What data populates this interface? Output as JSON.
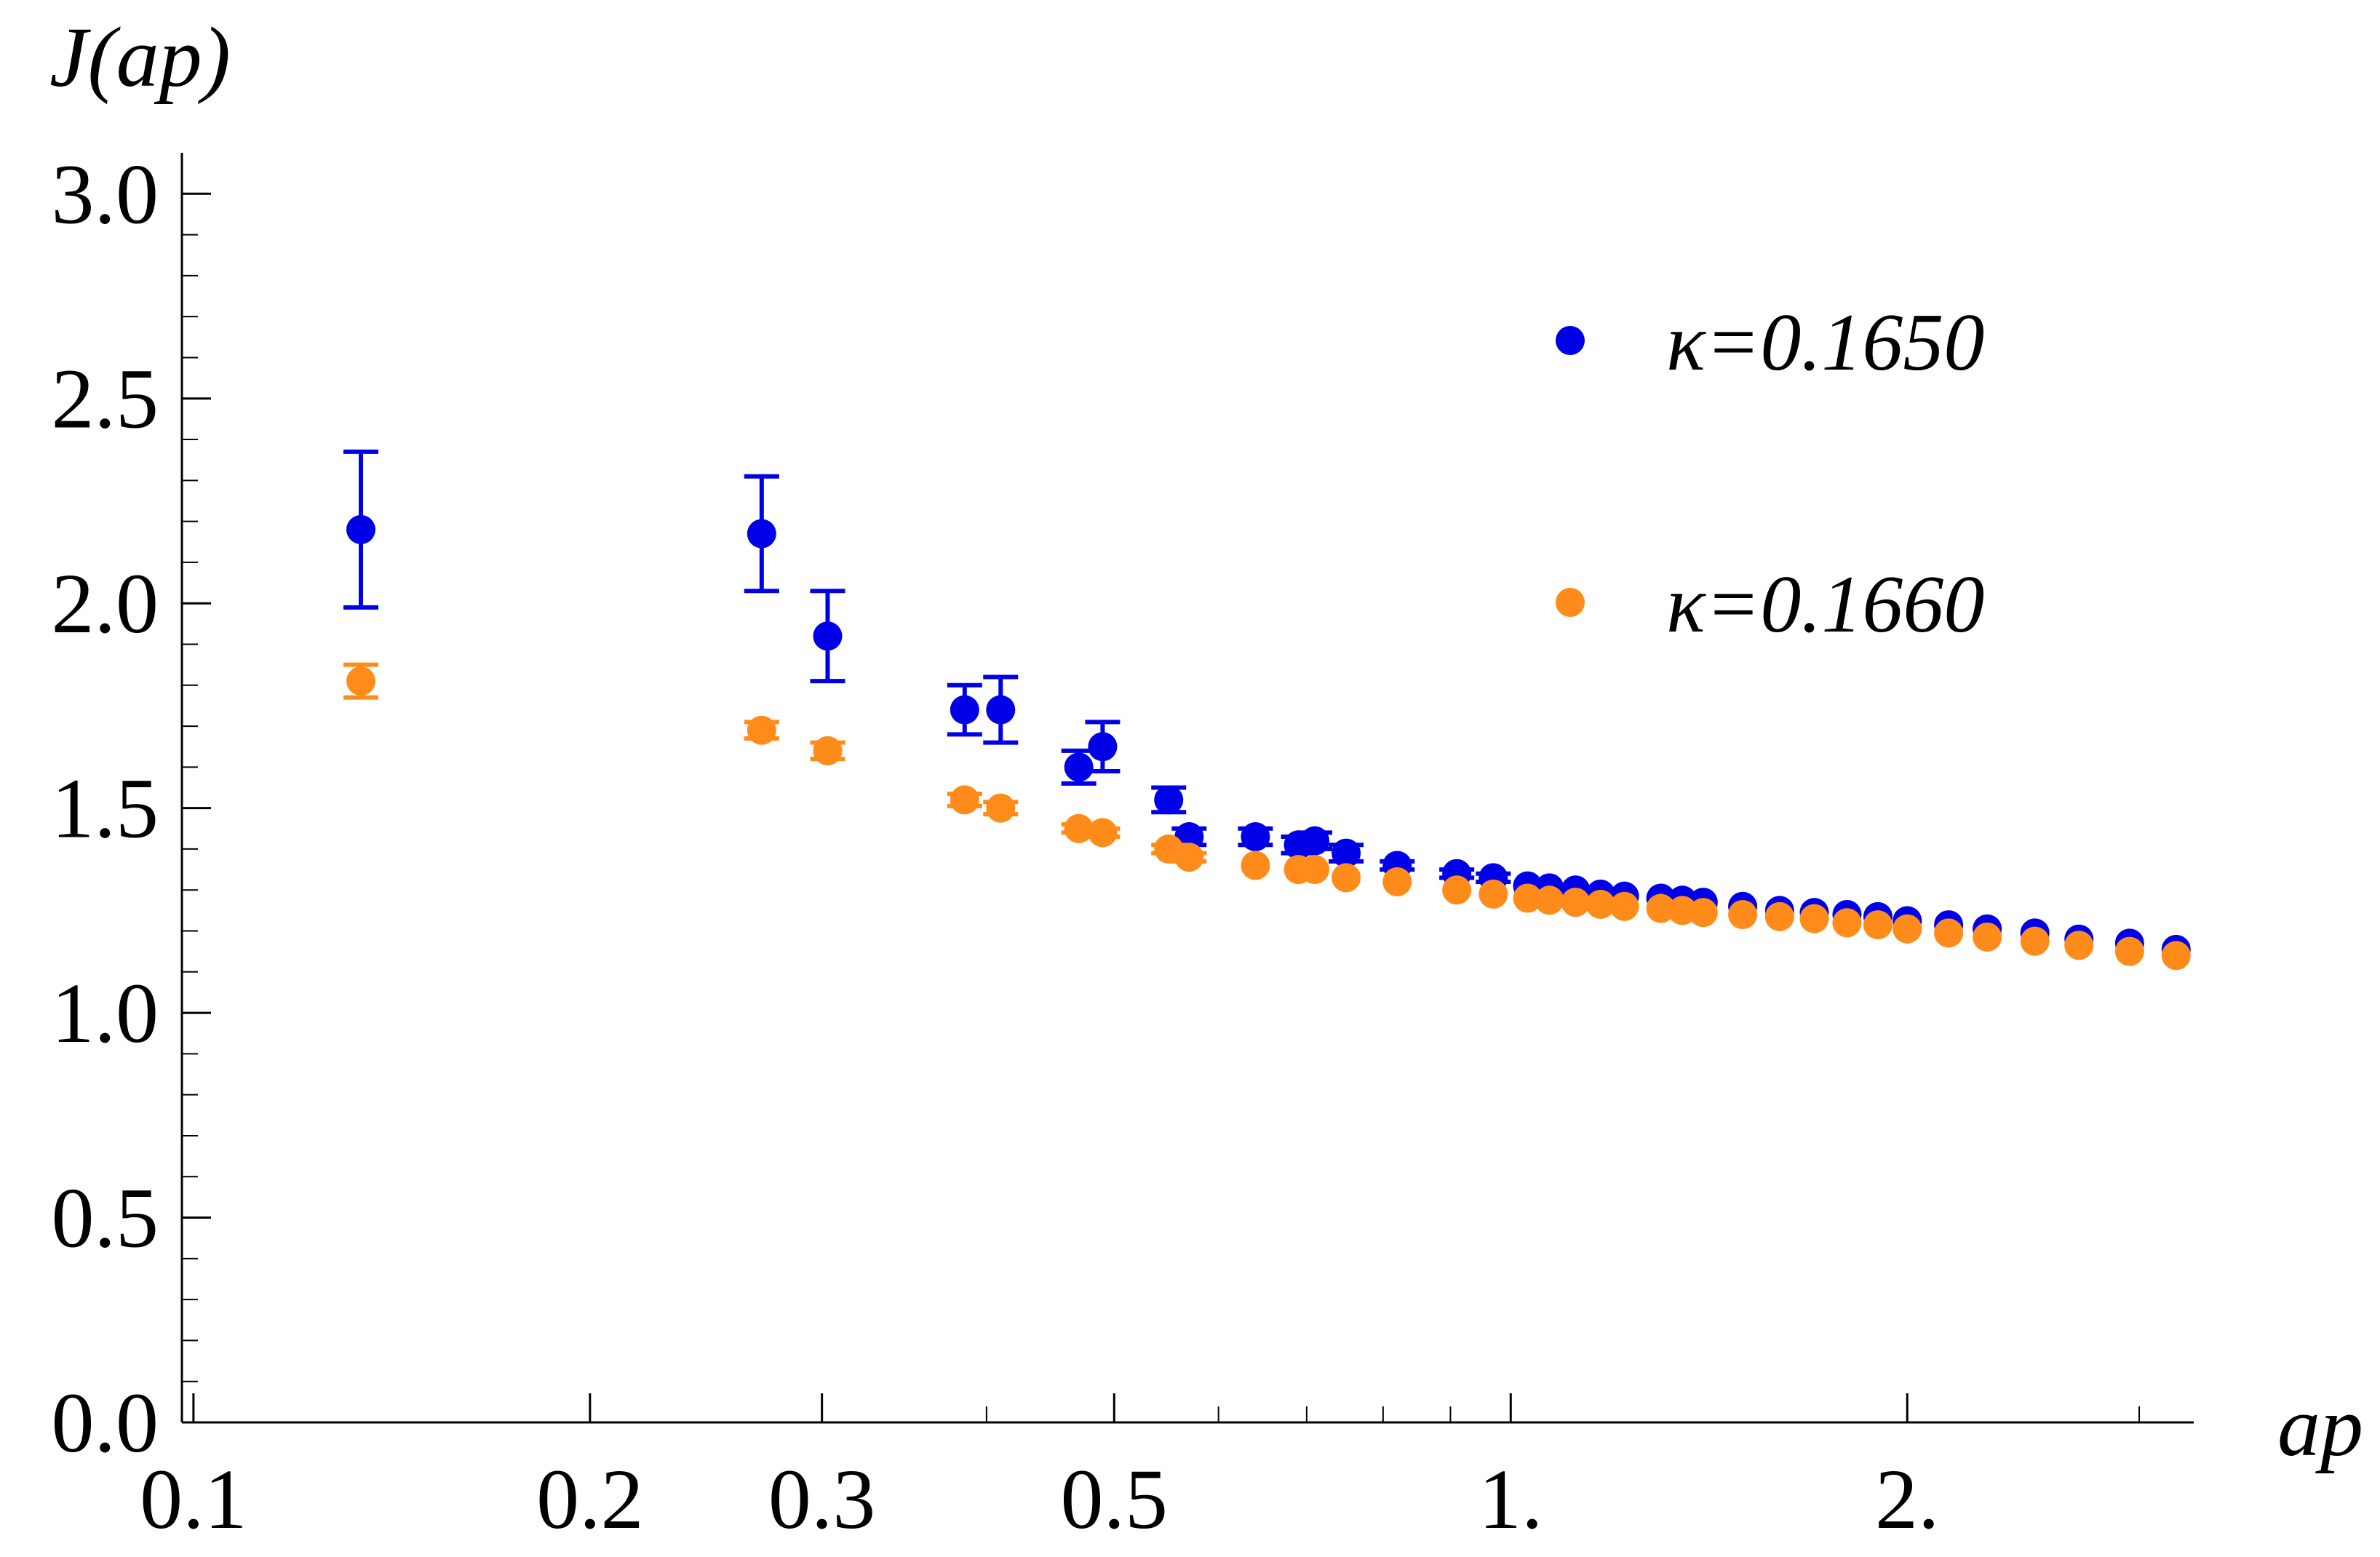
{
  "chart_data": {
    "type": "scatter",
    "xlabel": "ap",
    "ylabel": "J(ap)",
    "xscale": "log",
    "xlim": [
      0.098,
      3.3
    ],
    "ylim": [
      0.0,
      3.1
    ],
    "grid": false,
    "legend_position": "right",
    "xticks": [
      {
        "value": 0.1,
        "label": "0.1"
      },
      {
        "value": 0.2,
        "label": "0.2"
      },
      {
        "value": 0.3,
        "label": "0.3"
      },
      {
        "value": 0.5,
        "label": "0.5"
      },
      {
        "value": 1.0,
        "label": "1."
      },
      {
        "value": 2.0,
        "label": "2."
      }
    ],
    "yticks": [
      {
        "value": 0.0,
        "label": "0.0"
      },
      {
        "value": 0.5,
        "label": "0.5"
      },
      {
        "value": 1.0,
        "label": "1.0"
      },
      {
        "value": 1.5,
        "label": "1.5"
      },
      {
        "value": 2.0,
        "label": "2.0"
      },
      {
        "value": 2.5,
        "label": "2.5"
      },
      {
        "value": 3.0,
        "label": "3.0"
      }
    ],
    "series": [
      {
        "name": "κ=0.1650",
        "color": "#0000e6",
        "points": [
          {
            "x": 0.134,
            "y": 2.18,
            "err": 0.19
          },
          {
            "x": 0.27,
            "y": 2.17,
            "err": 0.14
          },
          {
            "x": 0.303,
            "y": 1.92,
            "err": 0.11
          },
          {
            "x": 0.385,
            "y": 1.74,
            "err": 0.06
          },
          {
            "x": 0.41,
            "y": 1.74,
            "err": 0.08
          },
          {
            "x": 0.47,
            "y": 1.6,
            "err": 0.04
          },
          {
            "x": 0.49,
            "y": 1.65,
            "err": 0.06
          },
          {
            "x": 0.55,
            "y": 1.52,
            "err": 0.03
          },
          {
            "x": 0.57,
            "y": 1.43,
            "err": 0.02
          },
          {
            "x": 0.64,
            "y": 1.43,
            "err": 0.02
          },
          {
            "x": 0.69,
            "y": 1.41,
            "err": 0.02
          },
          {
            "x": 0.71,
            "y": 1.42,
            "err": 0.02
          },
          {
            "x": 0.75,
            "y": 1.39,
            "err": 0.02
          },
          {
            "x": 0.82,
            "y": 1.36,
            "err": 0.01
          },
          {
            "x": 0.91,
            "y": 1.34,
            "err": 0.01
          },
          {
            "x": 0.97,
            "y": 1.33,
            "err": 0.01
          },
          {
            "x": 1.03,
            "y": 1.31
          },
          {
            "x": 1.07,
            "y": 1.305
          },
          {
            "x": 1.12,
            "y": 1.3
          },
          {
            "x": 1.17,
            "y": 1.29
          },
          {
            "x": 1.22,
            "y": 1.285
          },
          {
            "x": 1.3,
            "y": 1.28
          },
          {
            "x": 1.35,
            "y": 1.275
          },
          {
            "x": 1.4,
            "y": 1.27
          },
          {
            "x": 1.5,
            "y": 1.26
          },
          {
            "x": 1.6,
            "y": 1.25
          },
          {
            "x": 1.7,
            "y": 1.245
          },
          {
            "x": 1.8,
            "y": 1.24
          },
          {
            "x": 1.9,
            "y": 1.235
          },
          {
            "x": 2.0,
            "y": 1.225
          },
          {
            "x": 2.15,
            "y": 1.215
          },
          {
            "x": 2.3,
            "y": 1.205
          },
          {
            "x": 2.5,
            "y": 1.195
          },
          {
            "x": 2.7,
            "y": 1.18
          },
          {
            "x": 2.95,
            "y": 1.17
          },
          {
            "x": 3.2,
            "y": 1.155
          }
        ]
      },
      {
        "name": "κ=0.1660",
        "color": "#ff8c1a",
        "points": [
          {
            "x": 0.134,
            "y": 1.81,
            "err": 0.04
          },
          {
            "x": 0.27,
            "y": 1.69,
            "err": 0.02
          },
          {
            "x": 0.303,
            "y": 1.64,
            "err": 0.02
          },
          {
            "x": 0.385,
            "y": 1.52,
            "err": 0.015
          },
          {
            "x": 0.41,
            "y": 1.5,
            "err": 0.015
          },
          {
            "x": 0.47,
            "y": 1.45,
            "err": 0.01
          },
          {
            "x": 0.49,
            "y": 1.44,
            "err": 0.01
          },
          {
            "x": 0.55,
            "y": 1.4,
            "err": 0.01
          },
          {
            "x": 0.57,
            "y": 1.38,
            "err": 0.01
          },
          {
            "x": 0.64,
            "y": 1.36
          },
          {
            "x": 0.69,
            "y": 1.35
          },
          {
            "x": 0.71,
            "y": 1.35
          },
          {
            "x": 0.75,
            "y": 1.33
          },
          {
            "x": 0.82,
            "y": 1.32
          },
          {
            "x": 0.91,
            "y": 1.3
          },
          {
            "x": 0.97,
            "y": 1.29
          },
          {
            "x": 1.03,
            "y": 1.28
          },
          {
            "x": 1.07,
            "y": 1.275
          },
          {
            "x": 1.12,
            "y": 1.27
          },
          {
            "x": 1.17,
            "y": 1.265
          },
          {
            "x": 1.22,
            "y": 1.26
          },
          {
            "x": 1.3,
            "y": 1.255
          },
          {
            "x": 1.35,
            "y": 1.25
          },
          {
            "x": 1.4,
            "y": 1.245
          },
          {
            "x": 1.5,
            "y": 1.24
          },
          {
            "x": 1.6,
            "y": 1.235
          },
          {
            "x": 1.7,
            "y": 1.23
          },
          {
            "x": 1.8,
            "y": 1.22
          },
          {
            "x": 1.9,
            "y": 1.215
          },
          {
            "x": 2.0,
            "y": 1.205
          },
          {
            "x": 2.15,
            "y": 1.195
          },
          {
            "x": 2.3,
            "y": 1.185
          },
          {
            "x": 2.5,
            "y": 1.175
          },
          {
            "x": 2.7,
            "y": 1.165
          },
          {
            "x": 2.95,
            "y": 1.15
          },
          {
            "x": 3.2,
            "y": 1.14
          }
        ]
      }
    ]
  }
}
